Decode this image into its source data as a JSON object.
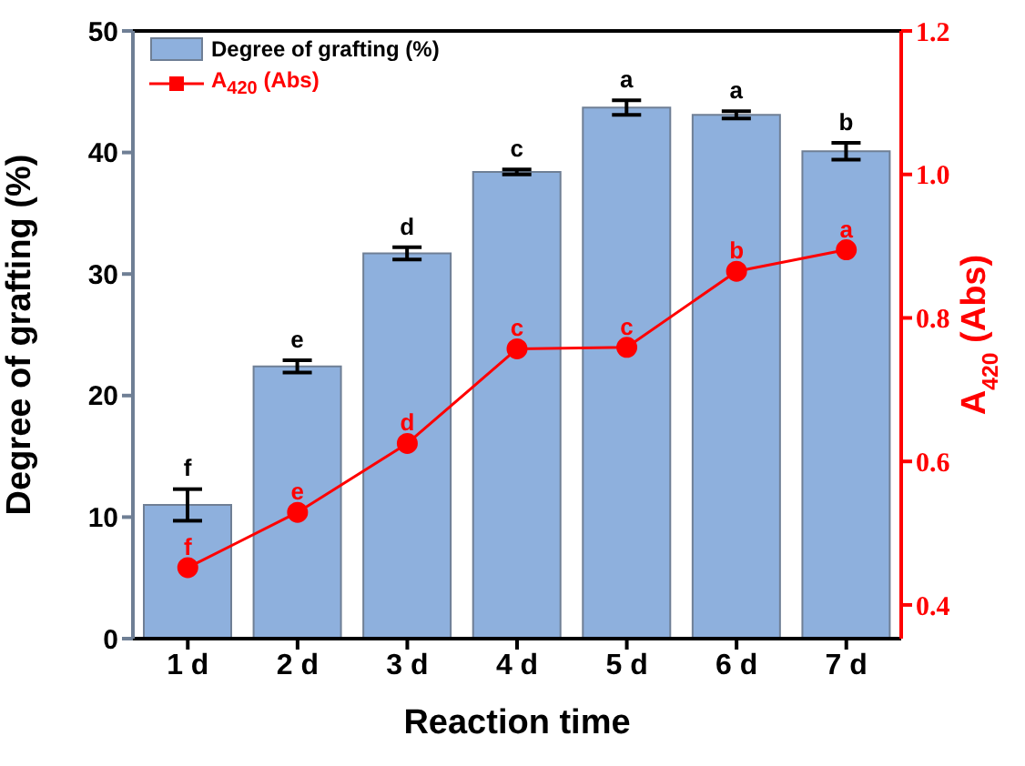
{
  "chart_data": {
    "type": "bar",
    "xlabel": "Reaction time",
    "ylabel": "Degree of grafting (%)",
    "y2label": "A$_{420}$ (Abs)",
    "categories": [
      "1 d",
      "2 d",
      "3 d",
      "4 d",
      "5 d",
      "6 d",
      "7 d"
    ],
    "series": [
      {
        "name": "Degree of grafting (%)",
        "color": "#8eb0dd",
        "values": [
          11.0,
          22.4,
          31.7,
          38.4,
          43.7,
          43.1,
          40.1
        ],
        "errors": [
          1.3,
          0.5,
          0.5,
          0.2,
          0.6,
          0.3,
          0.7
        ],
        "value_labels": [
          "f",
          "e",
          "d",
          "c",
          "a",
          "a",
          "b"
        ]
      },
      {
        "name": "A$_{420}$ (Abs)",
        "type": "line",
        "axis": "y2",
        "color": "#ff0000",
        "marker": "circle",
        "values": [
          0.452,
          0.529,
          0.625,
          0.757,
          0.759,
          0.865,
          0.895
        ],
        "value_labels": [
          "f",
          "e",
          "d",
          "c",
          "c",
          "b",
          "a"
        ]
      }
    ],
    "ylim": [
      0,
      50
    ],
    "yticks": [
      0,
      10,
      20,
      30,
      40,
      50
    ],
    "y2lim": [
      0.353,
      1.2
    ],
    "y2ticks": [
      0.4,
      0.6,
      0.8,
      {
        "value": 1,
        "label": "1.0"
      },
      1.2
    ],
    "legend": "top left"
  }
}
